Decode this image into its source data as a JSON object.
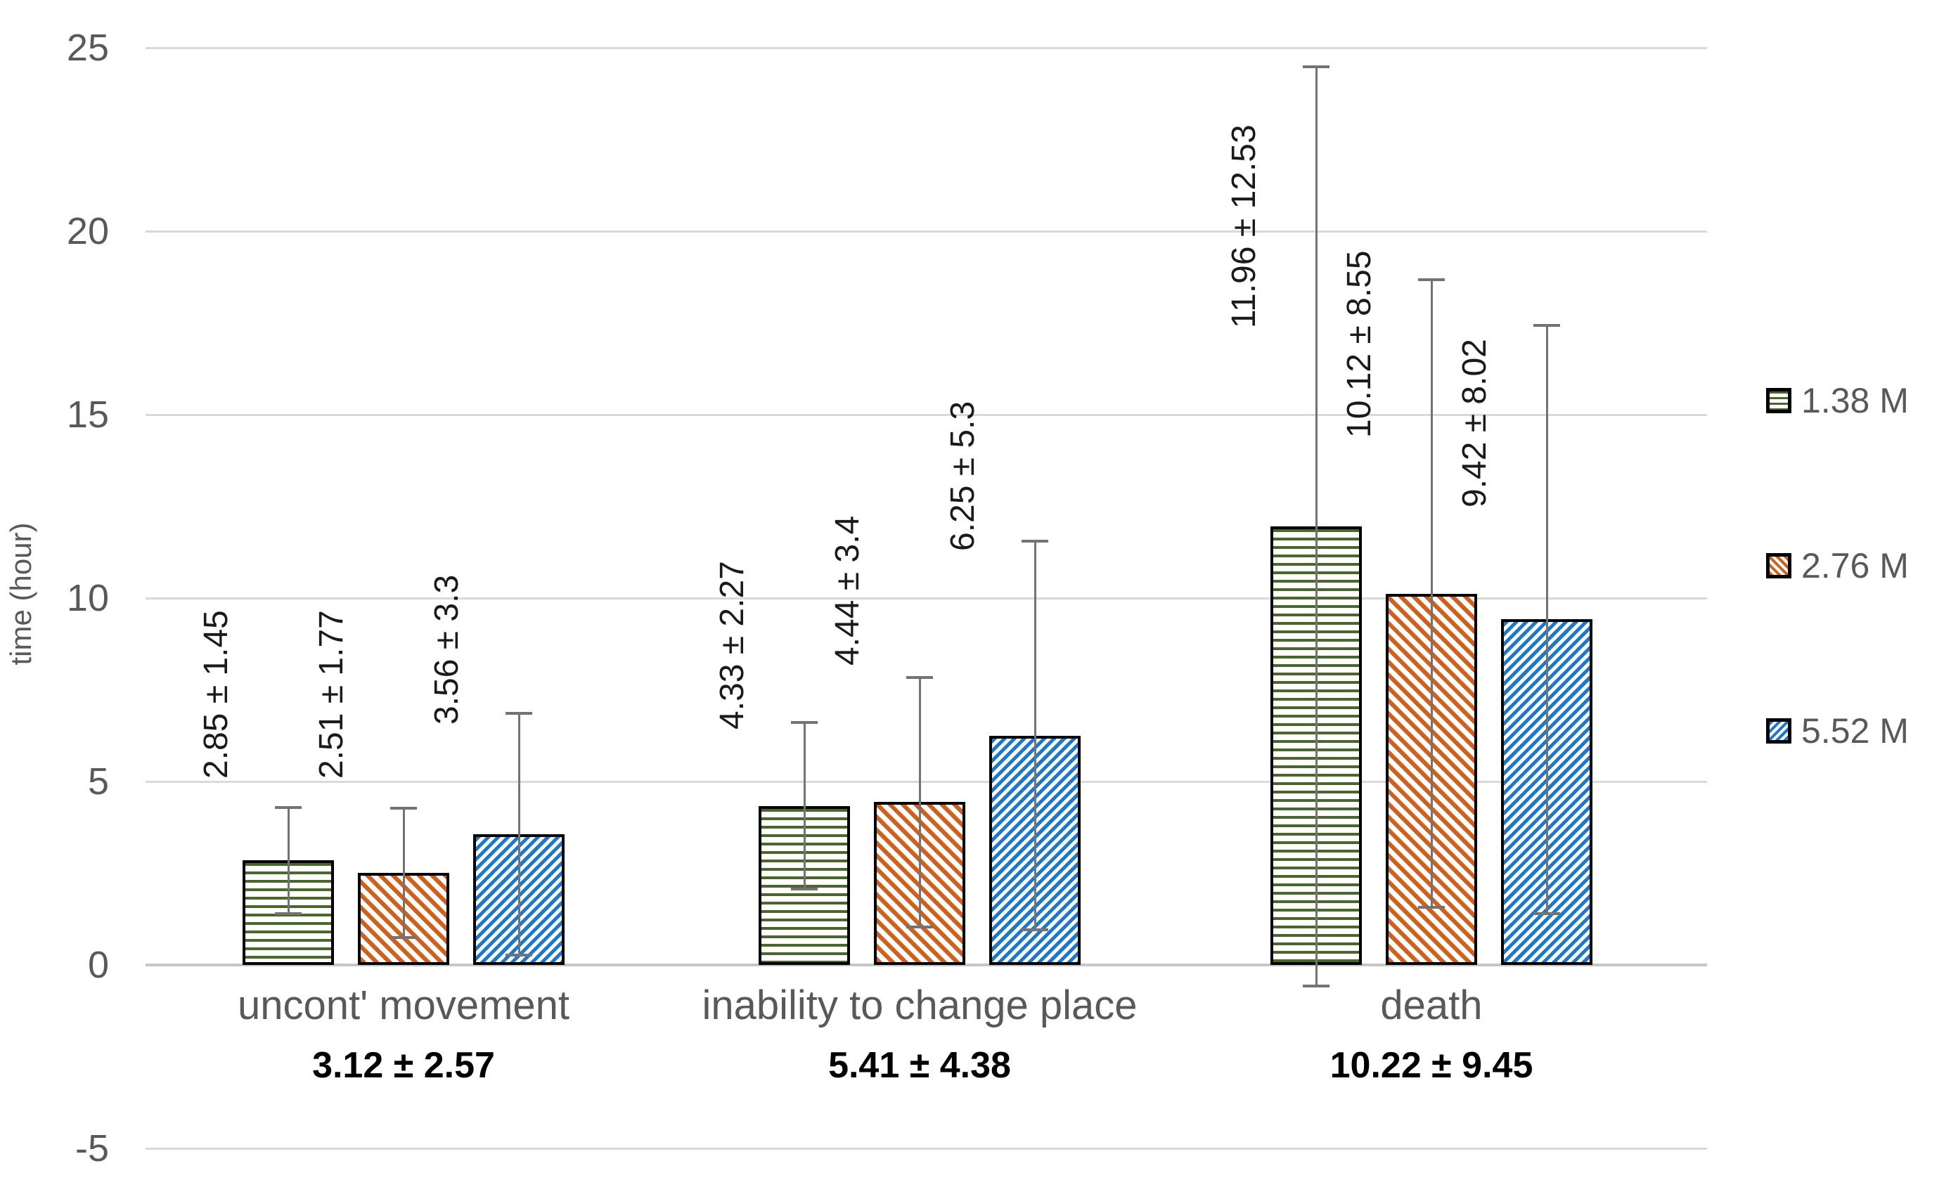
{
  "chart_data": {
    "type": "bar",
    "title": "",
    "ylabel": "time (hour)",
    "xlabel": "",
    "ylim": [
      -5,
      25
    ],
    "yticks": [
      25,
      20,
      15,
      10,
      5,
      0,
      -5
    ],
    "grid": true,
    "legend_position": "right-outside",
    "categories": [
      "uncont' movement",
      "inability to change place",
      "death"
    ],
    "group_means": [
      "3.12 ± 2.57",
      "5.41 ± 4.38",
      "10.22 ± 9.45"
    ],
    "series": [
      {
        "name": "1.38 M",
        "pattern": "horizontal-stripes",
        "color": "#4A672B",
        "values": [
          2.85,
          4.33,
          11.96
        ],
        "errors": [
          1.45,
          2.27,
          12.53
        ],
        "labels": [
          "2.85 ± 1.45",
          "4.33 ± 2.27",
          "11.96 ± 12.53"
        ]
      },
      {
        "name": "2.76 M",
        "pattern": "diagonal-down-stripes",
        "color": "#D0601C",
        "values": [
          2.51,
          4.44,
          10.12
        ],
        "errors": [
          1.77,
          3.4,
          8.55
        ],
        "labels": [
          "2.51 ± 1.77",
          "4.44 ± 3.4",
          "10.12 ± 8.55"
        ]
      },
      {
        "name": "5.52 M",
        "pattern": "diagonal-up-stripes",
        "color": "#1C78CC",
        "values": [
          3.56,
          6.25,
          9.42
        ],
        "errors": [
          3.3,
          5.3,
          8.02
        ],
        "labels": [
          "3.56 ± 3.3",
          "6.25 ± 5.3",
          "9.42 ± 8.02"
        ]
      }
    ],
    "colors": {
      "background": "#FFFFFF",
      "grid": "#D9D9D9",
      "axis_line": "#C6C6C6",
      "error_bar": "#737373",
      "bar_border": "#000000",
      "tick_text": "#595959",
      "category_text": "#595959",
      "value_text": "#1A1A1A",
      "mean_text": "#000000",
      "legend_text": "#595959",
      "axis_title_text": "#595959"
    }
  }
}
